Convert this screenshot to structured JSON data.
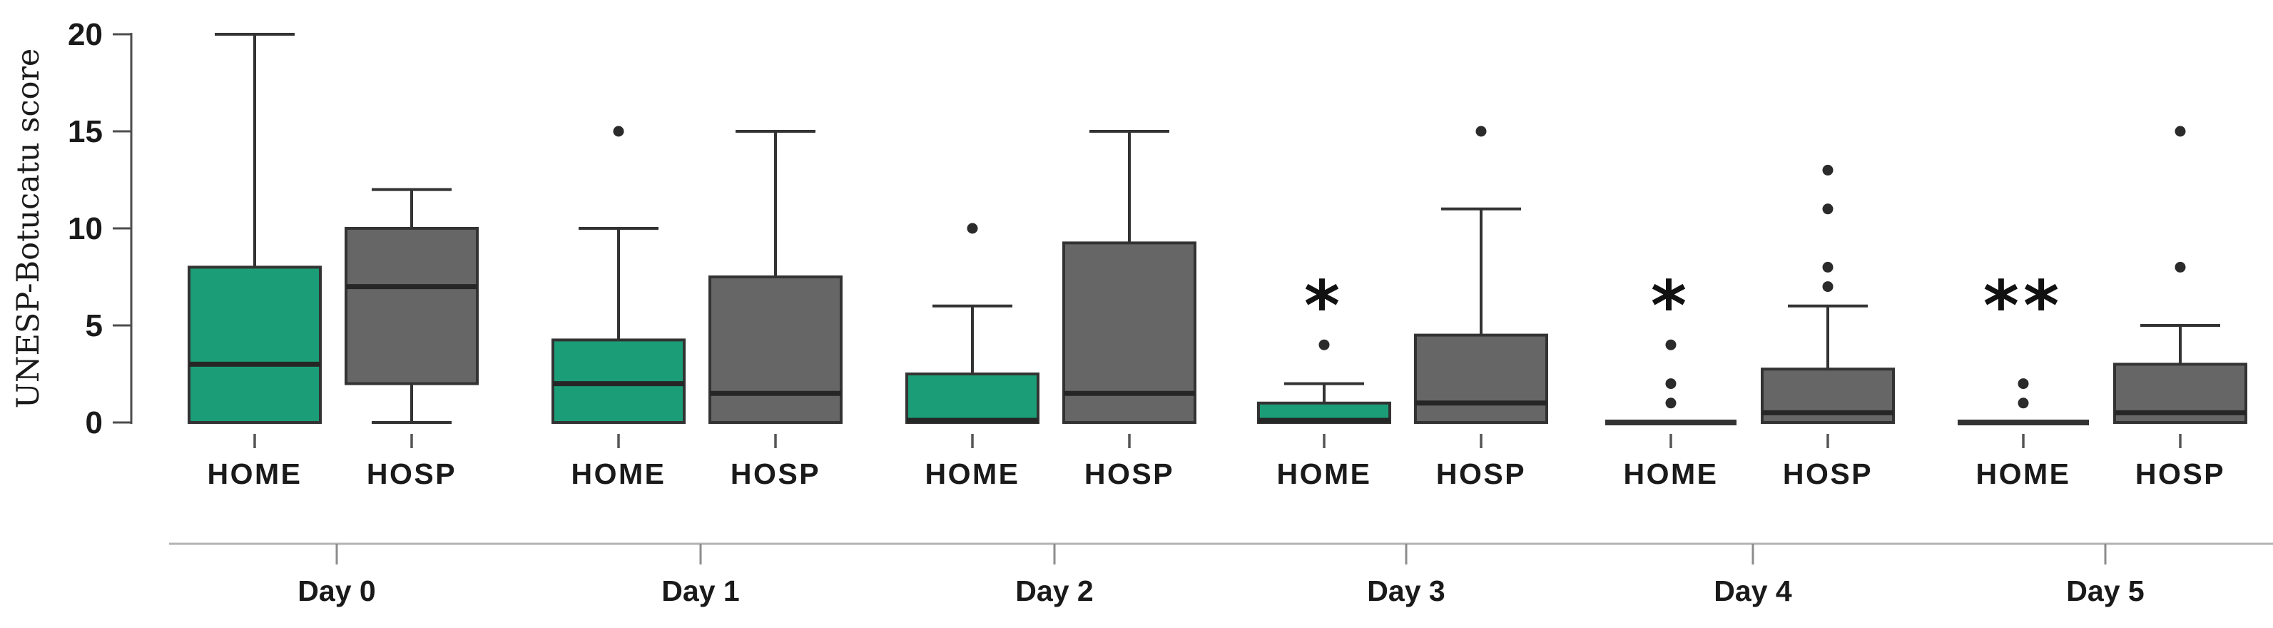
{
  "chart_data": {
    "type": "boxplot",
    "title": "",
    "ylabel": "UNESP-Botucatu score",
    "xlabel": "",
    "ylim": [
      0,
      20
    ],
    "yticks": [
      0,
      5,
      10,
      15,
      20
    ],
    "legend_position": "none",
    "grid": false,
    "series_labels": [
      "HOME",
      "HOSP"
    ],
    "colors": {
      "HOME": "#1b9e77",
      "HOSP": "#666666",
      "box_border": "#333333",
      "median": "#262626",
      "outlier": "#2b2b2b",
      "axis": "#4d4d4d",
      "group_axis_line": "#b3b3b3",
      "group_tick": "#8c8c8c",
      "text": "#1a1a1a"
    },
    "groups": [
      {
        "label": "Day 0",
        "boxes": [
          {
            "series": "HOME",
            "q1": 0,
            "median": 3,
            "q3": 8,
            "whisker_low": null,
            "whisker_high": 20,
            "outliers": [],
            "significance": ""
          },
          {
            "series": "HOSP",
            "q1": 2,
            "median": 7,
            "q3": 10,
            "whisker_low": 0,
            "whisker_high": 12,
            "outliers": [],
            "significance": ""
          }
        ]
      },
      {
        "label": "Day 1",
        "boxes": [
          {
            "series": "HOME",
            "q1": 0,
            "median": 2,
            "q3": 4.25,
            "whisker_low": null,
            "whisker_high": 10,
            "outliers": [
              15
            ],
            "significance": ""
          },
          {
            "series": "HOSP",
            "q1": 0,
            "median": 1.5,
            "q3": 7.5,
            "whisker_low": null,
            "whisker_high": 15,
            "outliers": [],
            "significance": ""
          }
        ]
      },
      {
        "label": "Day 2",
        "boxes": [
          {
            "series": "HOME",
            "q1": 0,
            "median": 0,
            "q3": 2.5,
            "whisker_low": null,
            "whisker_high": 6,
            "outliers": [
              10
            ],
            "significance": ""
          },
          {
            "series": "HOSP",
            "q1": 0,
            "median": 1.5,
            "q3": 9.25,
            "whisker_low": null,
            "whisker_high": 15,
            "outliers": [],
            "significance": ""
          }
        ]
      },
      {
        "label": "Day 3",
        "boxes": [
          {
            "series": "HOME",
            "q1": 0,
            "median": 0,
            "q3": 1,
            "whisker_low": null,
            "whisker_high": 2,
            "outliers": [
              4
            ],
            "significance": "*"
          },
          {
            "series": "HOSP",
            "q1": 0,
            "median": 1,
            "q3": 4.5,
            "whisker_low": null,
            "whisker_high": 11,
            "outliers": [
              15
            ],
            "significance": ""
          }
        ]
      },
      {
        "label": "Day 4",
        "boxes": [
          {
            "series": "HOME",
            "q1": 0,
            "median": 0,
            "q3": 0,
            "whisker_low": null,
            "whisker_high": null,
            "outliers": [
              1,
              2,
              4
            ],
            "significance": "*"
          },
          {
            "series": "HOSP",
            "q1": 0,
            "median": 0.5,
            "q3": 2.75,
            "whisker_low": null,
            "whisker_high": 6,
            "outliers": [
              7,
              8,
              11,
              13
            ],
            "significance": ""
          }
        ]
      },
      {
        "label": "Day 5",
        "boxes": [
          {
            "series": "HOME",
            "q1": 0,
            "median": 0,
            "q3": 0,
            "whisker_low": null,
            "whisker_high": null,
            "outliers": [
              1,
              2
            ],
            "significance": "**"
          },
          {
            "series": "HOSP",
            "q1": 0,
            "median": 0.5,
            "q3": 3,
            "whisker_low": null,
            "whisker_high": 5,
            "outliers": [
              8,
              15
            ],
            "significance": ""
          }
        ]
      }
    ]
  }
}
